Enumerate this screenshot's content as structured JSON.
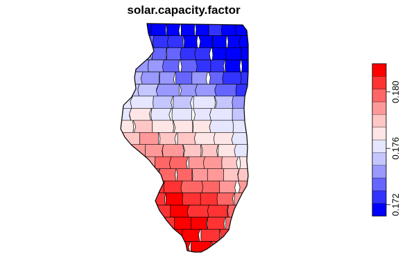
{
  "title": "solar.capacity.factor",
  "legend": {
    "placement": "right",
    "orientation": "vertical",
    "colors": [
      "#0000FF",
      "#3333FF",
      "#6666FF",
      "#9999FF",
      "#C6C6FF",
      "#E6E6FF",
      "#FFE6E6",
      "#FFC6C6",
      "#FF9999",
      "#FF6666",
      "#FF3333",
      "#FF0000"
    ],
    "ticks": [
      {
        "value": 0.172,
        "label": "0.172"
      },
      {
        "value": 0.176,
        "label": "0.176"
      },
      {
        "value": 0.18,
        "label": "0.180"
      }
    ],
    "range": [
      0.1712,
      0.182
    ]
  },
  "map": {
    "region": "Illinois counties",
    "fill_scale": "blue-white-red diverging",
    "row_levels": [
      [
        0,
        0,
        0,
        0,
        0,
        1,
        0,
        0
      ],
      [
        2,
        1,
        1,
        0,
        0,
        0,
        0,
        0
      ],
      [
        3,
        2,
        2,
        1,
        1,
        0,
        0,
        0
      ],
      [
        3,
        3,
        2,
        2,
        1,
        1,
        0,
        0
      ],
      [
        4,
        3,
        3,
        2,
        3,
        2,
        1,
        1
      ],
      [
        4,
        4,
        3,
        3,
        3,
        2,
        1
      ],
      [
        5,
        5,
        4,
        4,
        5,
        4,
        3
      ],
      [
        5,
        6,
        5,
        5,
        5,
        5,
        4
      ],
      [
        6,
        7,
        6,
        6,
        6,
        5,
        5
      ],
      [
        7,
        8,
        7,
        7,
        6,
        6,
        5
      ],
      [
        8,
        8,
        8,
        7,
        7,
        6,
        5
      ],
      [
        8,
        9,
        9,
        8,
        8,
        7,
        6
      ],
      [
        9,
        9,
        9,
        8,
        8,
        7,
        7
      ],
      [
        10,
        10,
        9,
        9,
        8,
        8
      ],
      [
        10,
        11,
        10,
        10,
        9,
        8
      ],
      [
        10,
        11,
        10,
        10,
        9
      ],
      [
        10,
        11,
        11,
        10,
        9
      ],
      [
        11,
        11,
        10,
        10
      ],
      [
        11,
        11,
        10
      ]
    ]
  }
}
